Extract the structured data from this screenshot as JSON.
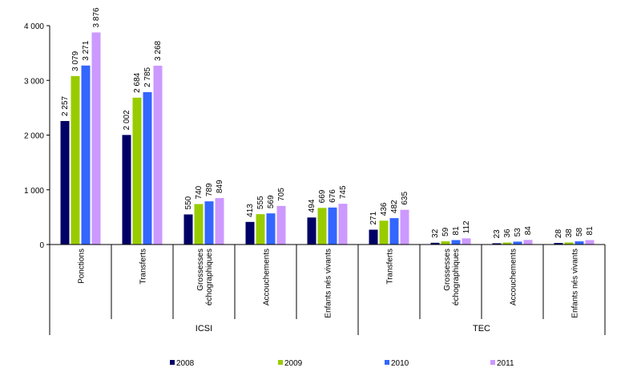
{
  "chart_data": {
    "type": "bar",
    "title": "",
    "xlabel": "",
    "ylabel": "",
    "ylim": [
      0,
      4000
    ],
    "yticks": [
      0,
      1000,
      2000,
      3000,
      4000
    ],
    "ytick_labels": [
      "0",
      "1 000",
      "2 000",
      "3 000",
      "4 000"
    ],
    "grid": false,
    "legend_position": "bottom",
    "groups": [
      {
        "label": "ICSI",
        "categories": [
          "Ponctions",
          "Transferts",
          "Grossesses échographiques",
          "Accouchements",
          "Enfants nés vivants"
        ]
      },
      {
        "label": "TEC",
        "categories": [
          "Transferts",
          "Grossesses échographiques",
          "Accouchements",
          "Enfants nés vivants"
        ]
      }
    ],
    "categories": [
      "Ponctions",
      "Transferts",
      "Grossesses échographiques",
      "Accouchements",
      "Enfants nés vivants",
      "Transferts",
      "Grossesses échographiques",
      "Accouchements",
      "Enfants nés vivants"
    ],
    "category_lines": [
      [
        "Ponctions"
      ],
      [
        "Transferts"
      ],
      [
        "Grossesses",
        "échographiques"
      ],
      [
        "Accouchements"
      ],
      [
        "Enfants nés vivants"
      ],
      [
        "Transferts"
      ],
      [
        "Grossesses",
        "échographiques"
      ],
      [
        "Accouchements"
      ],
      [
        "Enfants nés vivants"
      ]
    ],
    "series": [
      {
        "name": "2008",
        "color": "#000066",
        "values": [
          2257,
          2002,
          550,
          413,
          494,
          271,
          32,
          23,
          28
        ],
        "labels": [
          "2 257",
          "2 002",
          "550",
          "413",
          "494",
          "271",
          "32",
          "23",
          "28"
        ]
      },
      {
        "name": "2009",
        "color": "#99CC00",
        "values": [
          3079,
          2684,
          740,
          555,
          669,
          436,
          59,
          36,
          38
        ],
        "labels": [
          "3 079",
          "2 684",
          "740",
          "555",
          "669",
          "436",
          "59",
          "36",
          "38"
        ]
      },
      {
        "name": "2010",
        "color": "#3366FF",
        "values": [
          3271,
          2785,
          789,
          569,
          676,
          482,
          81,
          53,
          58
        ],
        "labels": [
          "3 271",
          "2 785",
          "789",
          "569",
          "676",
          "482",
          "81",
          "53",
          "58"
        ]
      },
      {
        "name": "2011",
        "color": "#CC99FF",
        "values": [
          3876,
          3268,
          849,
          705,
          745,
          635,
          112,
          84,
          81
        ],
        "labels": [
          "3 876",
          "3 268",
          "849",
          "705",
          "745",
          "635",
          "112",
          "84",
          "81"
        ]
      }
    ]
  }
}
